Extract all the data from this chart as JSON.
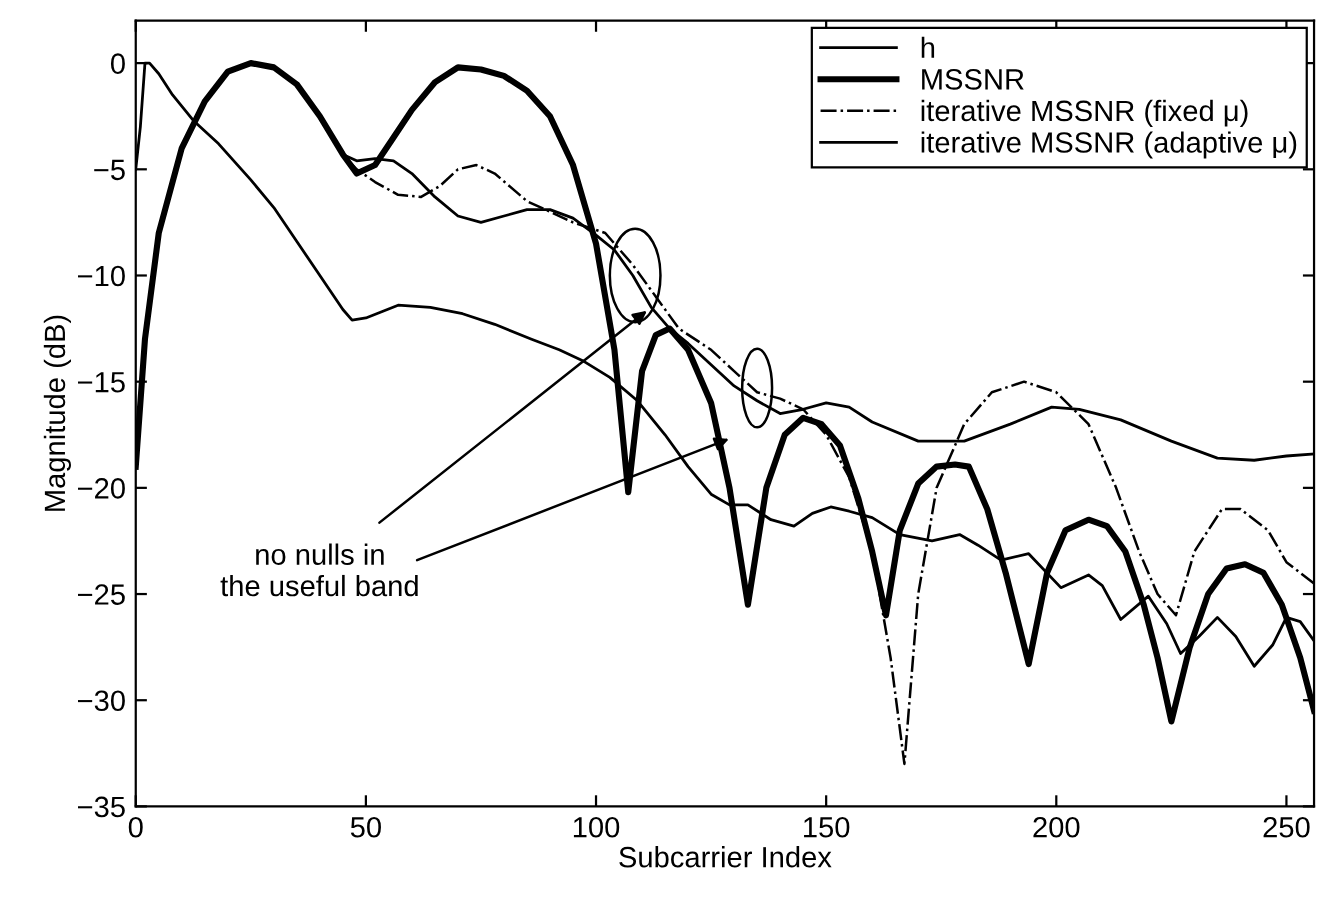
{
  "chart_data": {
    "type": "line",
    "xlabel": "Subcarrier Index",
    "ylabel": "Magnitude (dB)",
    "xlim": [
      0,
      256
    ],
    "ylim": [
      -35,
      2
    ],
    "xticks": [
      0,
      50,
      100,
      150,
      200,
      250
    ],
    "yticks": [
      -35,
      -30,
      -25,
      -20,
      -15,
      -10,
      -5,
      0
    ],
    "grid": false,
    "legend": "top right",
    "marker": "none",
    "annotations": [
      {
        "text": "no nulls in\nthe useful band",
        "x": 112,
        "y": -11.5
      }
    ],
    "series": [
      {
        "name": "h",
        "color": "#000000",
        "line_style": "solid",
        "x": [
          0,
          1,
          2,
          3,
          5,
          8,
          12.5,
          18,
          25,
          30,
          35,
          40,
          45,
          47,
          50,
          57,
          64,
          71,
          78,
          86,
          92,
          97,
          103,
          109,
          115,
          120,
          125,
          129,
          133,
          138,
          143,
          147,
          151,
          155,
          160,
          166,
          173,
          179,
          183,
          188,
          194,
          201,
          207,
          210,
          214,
          220,
          224,
          227,
          231,
          235,
          239,
          243,
          247,
          250,
          253,
          256
        ],
        "values": [
          -5,
          -3,
          0,
          0,
          -0.5,
          -1.5,
          -2.7,
          -3.8,
          -5.5,
          -6.8,
          -8.4,
          -10,
          -11.6,
          -12.1,
          -12,
          -11.4,
          -11.5,
          -11.8,
          -12.3,
          -13,
          -13.5,
          -14,
          -14.8,
          -15.9,
          -17.5,
          -19,
          -20.3,
          -20.8,
          -20.8,
          -21.5,
          -21.8,
          -21.2,
          -20.9,
          -21.1,
          -21.4,
          -22.2,
          -22.5,
          -22.2,
          -22.7,
          -23.4,
          -23.1,
          -24.7,
          -24.1,
          -24.6,
          -26.2,
          -25.1,
          -26.4,
          -27.8,
          -27,
          -26.1,
          -27,
          -28.4,
          -27.4,
          -26.1,
          -26.3,
          -27.2
        ]
      },
      {
        "name": "MSSNR",
        "color": "#000000",
        "line_style": "solid",
        "x": [
          0,
          2,
          5,
          10,
          15,
          20,
          25,
          30,
          35,
          40,
          45,
          48,
          52,
          56,
          60,
          65,
          70,
          75,
          80,
          85,
          90,
          95,
          100,
          104,
          107,
          110,
          113,
          116,
          120,
          125,
          129,
          133,
          137,
          141,
          145,
          149,
          153,
          157,
          160,
          163,
          166,
          170,
          174,
          178,
          181,
          185,
          189,
          194,
          198,
          202,
          207,
          211,
          215,
          219,
          222,
          225,
          229,
          233,
          237,
          241,
          245,
          249,
          253,
          256
        ],
        "values": [
          -19,
          -13,
          -8,
          -4,
          -1.8,
          -0.4,
          0,
          -0.2,
          -1,
          -2.5,
          -4.3,
          -5.2,
          -4.8,
          -3.5,
          -2.2,
          -0.9,
          -0.2,
          -0.3,
          -0.6,
          -1.3,
          -2.5,
          -4.8,
          -8.5,
          -13.5,
          -20.2,
          -14.5,
          -12.8,
          -12.5,
          -13.5,
          -16,
          -20,
          -25.5,
          -20,
          -17.5,
          -16.7,
          -17,
          -18,
          -20.5,
          -23,
          -26,
          -22,
          -19.8,
          -19,
          -18.9,
          -19,
          -21,
          -24,
          -28.3,
          -24,
          -22,
          -21.5,
          -21.8,
          -23,
          -25.5,
          -28,
          -31,
          -27.5,
          -25,
          -23.8,
          -23.6,
          -24,
          -25.5,
          -28,
          -30.5
        ]
      },
      {
        "name": "iterative MSSNR (fixed μ)",
        "color": "#000000",
        "line_style": "dashdot",
        "x": [
          0,
          2,
          5,
          10,
          15,
          20,
          25,
          30,
          35,
          40,
          45,
          48,
          52,
          57,
          62,
          66,
          70,
          74,
          78,
          85,
          95,
          102,
          108,
          113,
          118,
          125,
          130,
          135,
          140,
          145,
          150,
          155,
          160,
          164,
          167,
          170,
          174,
          180,
          186,
          193,
          200,
          207,
          213,
          218,
          222,
          226,
          230,
          236,
          240,
          246,
          250,
          256
        ],
        "values": [
          -19,
          -13,
          -8,
          -4,
          -1.8,
          -0.4,
          0,
          -0.2,
          -1,
          -2.5,
          -4.3,
          -5,
          -5.6,
          -6.2,
          -6.3,
          -5.8,
          -5,
          -4.8,
          -5.2,
          -6.5,
          -7.5,
          -8,
          -9.5,
          -11,
          -12.5,
          -13.5,
          -14.5,
          -15.5,
          -15.8,
          -16.3,
          -17.5,
          -19.5,
          -23,
          -28,
          -33,
          -25,
          -20,
          -17,
          -15.5,
          -15,
          -15.5,
          -17,
          -20,
          -23,
          -25,
          -26,
          -23,
          -21,
          -21,
          -22,
          -23.5,
          -24.5
        ]
      },
      {
        "name": "iterative MSSNR (adaptive μ)",
        "color": "#000000",
        "line_style": "solid",
        "x": [
          0,
          2,
          5,
          10,
          15,
          20,
          25,
          30,
          35,
          40,
          45,
          48,
          52,
          56,
          60,
          65,
          70,
          75,
          80,
          85,
          90,
          95,
          100,
          104,
          108,
          112,
          116,
          120,
          125,
          130,
          135,
          140,
          145,
          150,
          155,
          160,
          170,
          180,
          190,
          199,
          205,
          214,
          225,
          235,
          243,
          250,
          256
        ],
        "values": [
          -19,
          -13,
          -8,
          -4,
          -1.8,
          -0.4,
          0,
          -0.2,
          -1,
          -2.5,
          -4.3,
          -4.6,
          -4.5,
          -4.6,
          -5.2,
          -6.3,
          -7.2,
          -7.5,
          -7.2,
          -6.9,
          -6.9,
          -7.3,
          -8.1,
          -8.8,
          -10,
          -11.5,
          -12.5,
          -13.2,
          -14.2,
          -15.2,
          -15.9,
          -16.5,
          -16.3,
          -16,
          -16.2,
          -16.9,
          -17.8,
          -17.8,
          -17,
          -16.2,
          -16.3,
          -16.8,
          -17.8,
          -18.6,
          -18.7,
          -18.5,
          -18.4
        ]
      }
    ]
  }
}
